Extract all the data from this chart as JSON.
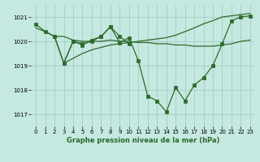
{
  "title": "Graphe pression niveau de la mer (hPa)",
  "bg_color": "#c5e8e0",
  "line_color": "#2d6a2d",
  "grid_color": "#a0c8be",
  "xlim": [
    -0.5,
    23.5
  ],
  "ylim": [
    1016.5,
    1021.5
  ],
  "yticks": [
    1017,
    1018,
    1019,
    1020,
    1021
  ],
  "xticks": [
    0,
    1,
    2,
    3,
    4,
    5,
    6,
    7,
    8,
    9,
    10,
    11,
    12,
    13,
    14,
    15,
    16,
    17,
    18,
    19,
    20,
    21,
    22,
    23
  ],
  "line1_x": [
    0,
    1,
    2,
    3,
    4,
    5,
    6,
    7,
    8,
    9,
    10,
    11,
    12,
    13,
    14,
    15,
    16,
    17,
    18,
    19,
    20,
    21,
    22,
    23
  ],
  "line1_y": [
    1020.7,
    1020.4,
    1020.2,
    1019.1,
    1020.0,
    1019.85,
    1020.05,
    1020.2,
    1020.6,
    1019.95,
    1020.15,
    1019.2,
    1017.75,
    1017.55,
    1017.1,
    1018.1,
    1017.55,
    1018.2,
    1018.5,
    1019.0,
    1019.9,
    1020.85,
    1021.0,
    1021.05
  ],
  "line2_x": [
    0,
    1,
    2,
    3,
    4,
    5,
    6,
    7,
    8,
    9,
    10,
    11,
    12,
    13,
    14,
    15,
    16,
    17,
    18,
    19,
    20,
    21,
    22,
    23
  ],
  "line2_y": [
    1020.55,
    1020.4,
    1020.2,
    1020.2,
    1020.05,
    1020.0,
    1020.0,
    1020.0,
    1020.05,
    1020.0,
    1020.0,
    1019.95,
    1019.95,
    1019.9,
    1019.9,
    1019.85,
    1019.85,
    1019.8,
    1019.8,
    1019.8,
    1019.85,
    1019.9,
    1020.0,
    1020.05
  ],
  "line3_x": [
    2,
    3,
    4,
    5,
    6,
    7,
    8,
    9,
    10
  ],
  "line3_y": [
    1020.2,
    1019.1,
    1020.0,
    1019.9,
    1020.0,
    1020.2,
    1020.6,
    1020.2,
    1019.9
  ],
  "line4_x": [
    3,
    4,
    5,
    6,
    7,
    8,
    9,
    10,
    11,
    12,
    13,
    14,
    15,
    16,
    17,
    18,
    19,
    20,
    21,
    22,
    23
  ],
  "line4_y": [
    1019.1,
    1019.3,
    1019.5,
    1019.65,
    1019.75,
    1019.85,
    1019.9,
    1019.95,
    1020.0,
    1020.05,
    1020.1,
    1020.15,
    1020.25,
    1020.4,
    1020.55,
    1020.72,
    1020.85,
    1021.0,
    1021.05,
    1021.1,
    1021.15
  ]
}
